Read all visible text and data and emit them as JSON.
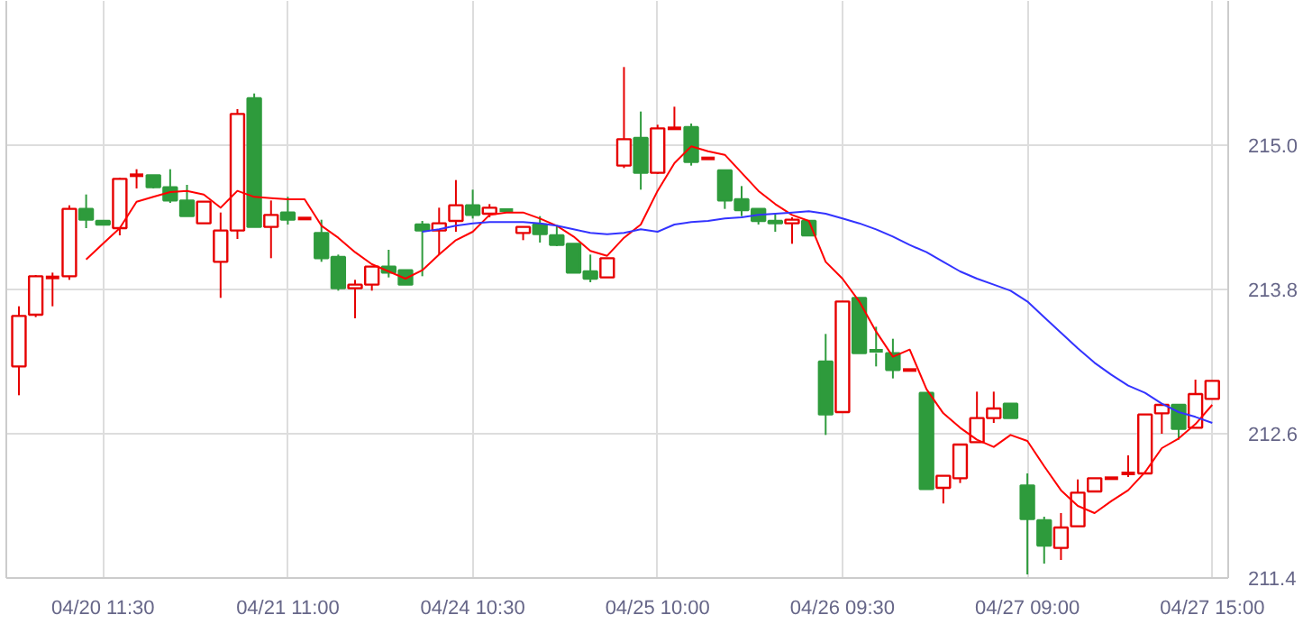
{
  "chart_data": {
    "type": "candlestick",
    "categories": [
      null,
      null,
      null,
      null,
      null,
      "04/20 11:30",
      null,
      null,
      null,
      null,
      null,
      null,
      null,
      null,
      null,
      null,
      "04/21 11:00",
      null,
      null,
      null,
      null,
      null,
      null,
      null,
      null,
      null,
      null,
      "04/24 10:30",
      null,
      null,
      null,
      null,
      null,
      null,
      null,
      null,
      null,
      null,
      "04/25 10:00",
      null,
      null,
      null,
      null,
      null,
      null,
      null,
      null,
      null,
      null,
      "04/26 09:30",
      null,
      null,
      null,
      null,
      null,
      null,
      null,
      null,
      null,
      null,
      "04/27 09:00",
      null,
      null,
      null,
      null,
      null,
      null,
      null,
      null,
      null,
      null,
      "04/27 15:00"
    ],
    "ohlc": [
      [
        213.16,
        213.66,
        212.92,
        213.58
      ],
      [
        213.59,
        213.92,
        213.57,
        213.91
      ],
      [
        213.89,
        213.94,
        213.66,
        213.9
      ],
      [
        213.91,
        214.5,
        213.88,
        214.47
      ],
      [
        214.47,
        214.59,
        214.31,
        214.38
      ],
      [
        214.37,
        214.37,
        214.34,
        214.34
      ],
      [
        214.31,
        214.73,
        214.25,
        214.72
      ],
      [
        214.74,
        214.8,
        214.64,
        214.75
      ],
      [
        214.75,
        214.75,
        214.64,
        214.65
      ],
      [
        214.65,
        214.8,
        214.52,
        214.54
      ],
      [
        214.54,
        214.67,
        214.41,
        214.41
      ],
      [
        214.35,
        214.53,
        214.35,
        214.53
      ],
      [
        214.03,
        214.44,
        213.73,
        214.29
      ],
      [
        214.29,
        215.3,
        214.22,
        215.26
      ],
      [
        215.39,
        215.43,
        214.32,
        214.32
      ],
      [
        214.32,
        214.54,
        214.06,
        214.42
      ],
      [
        214.44,
        214.57,
        214.34,
        214.38
      ],
      [
        214.37,
        214.39,
        214.37,
        214.39
      ],
      [
        214.27,
        214.38,
        214.03,
        214.06
      ],
      [
        214.07,
        214.09,
        213.79,
        213.81
      ],
      [
        213.81,
        213.88,
        213.56,
        213.84
      ],
      [
        213.84,
        213.99,
        213.79,
        213.99
      ],
      [
        213.99,
        214.13,
        213.9,
        213.94
      ],
      [
        213.96,
        213.96,
        213.84,
        213.84
      ],
      [
        214.34,
        214.37,
        213.91,
        214.29
      ],
      [
        214.29,
        214.48,
        214.09,
        214.35
      ],
      [
        214.37,
        214.71,
        214.28,
        214.5
      ],
      [
        214.5,
        214.63,
        214.39,
        214.42
      ],
      [
        214.43,
        214.51,
        214.4,
        214.48
      ],
      [
        214.46,
        214.46,
        214.45,
        214.45
      ],
      [
        214.27,
        214.32,
        214.21,
        214.32
      ],
      [
        214.34,
        214.41,
        214.19,
        214.26
      ],
      [
        214.25,
        214.33,
        214.16,
        214.17
      ],
      [
        214.18,
        214.18,
        213.94,
        213.94
      ],
      [
        213.95,
        214.09,
        213.86,
        213.89
      ],
      [
        213.9,
        214.06,
        213.9,
        214.06
      ],
      [
        214.83,
        215.65,
        214.81,
        215.05
      ],
      [
        215.06,
        215.28,
        214.63,
        214.77
      ],
      [
        214.77,
        215.17,
        214.76,
        215.14
      ],
      [
        215.13,
        215.32,
        215.13,
        215.14
      ],
      [
        215.15,
        215.18,
        214.83,
        214.86
      ],
      [
        214.88,
        214.89,
        214.88,
        214.89
      ],
      [
        214.79,
        214.79,
        214.47,
        214.54
      ],
      [
        214.55,
        214.66,
        214.41,
        214.46
      ],
      [
        214.47,
        214.47,
        214.34,
        214.37
      ],
      [
        214.37,
        214.43,
        214.28,
        214.35
      ],
      [
        214.35,
        214.4,
        214.18,
        214.38
      ],
      [
        214.37,
        214.37,
        214.25,
        214.25
      ],
      [
        213.2,
        213.43,
        212.59,
        212.76
      ],
      [
        212.78,
        213.7,
        212.78,
        213.7
      ],
      [
        213.73,
        213.73,
        213.27,
        213.27
      ],
      [
        213.29,
        213.49,
        213.16,
        213.27
      ],
      [
        213.27,
        213.39,
        213.06,
        213.13
      ],
      [
        213.12,
        213.13,
        213.12,
        213.13
      ],
      [
        212.94,
        212.94,
        212.14,
        212.14
      ],
      [
        212.15,
        212.25,
        212.02,
        212.25
      ],
      [
        212.23,
        212.51,
        212.19,
        212.51
      ],
      [
        212.53,
        212.95,
        212.53,
        212.73
      ],
      [
        212.73,
        212.95,
        212.69,
        212.81
      ],
      [
        212.85,
        212.85,
        212.73,
        212.73
      ],
      [
        212.17,
        212.27,
        211.43,
        211.89
      ],
      [
        211.88,
        211.91,
        211.52,
        211.67
      ],
      [
        211.65,
        211.94,
        211.55,
        211.82
      ],
      [
        211.83,
        212.22,
        211.83,
        212.11
      ],
      [
        212.12,
        212.23,
        212.12,
        212.23
      ],
      [
        212.22,
        212.23,
        212.22,
        212.23
      ],
      [
        212.26,
        212.42,
        212.24,
        212.27
      ],
      [
        212.27,
        212.76,
        212.27,
        212.76
      ],
      [
        212.77,
        212.84,
        212.6,
        212.84
      ],
      [
        212.84,
        212.84,
        212.55,
        212.64
      ],
      [
        212.65,
        213.05,
        212.65,
        212.93
      ],
      [
        212.89,
        213.04,
        212.89,
        213.04
      ]
    ],
    "colors": [
      "#e60000",
      "#e60000",
      "#e60000",
      "#e60000",
      "#2e9b3c",
      "#2e9b3c",
      "#e60000",
      "#e60000",
      "#2e9b3c",
      "#2e9b3c",
      "#2e9b3c",
      "#e60000",
      "#e60000",
      "#e60000",
      "#2e9b3c",
      "#e60000",
      "#2e9b3c",
      "#e60000",
      "#2e9b3c",
      "#2e9b3c",
      "#e60000",
      "#e60000",
      "#2e9b3c",
      "#2e9b3c",
      "#2e9b3c",
      "#e60000",
      "#e60000",
      "#2e9b3c",
      "#e60000",
      "#2e9b3c",
      "#e60000",
      "#2e9b3c",
      "#2e9b3c",
      "#2e9b3c",
      "#2e9b3c",
      "#e60000",
      "#e60000",
      "#2e9b3c",
      "#e60000",
      "#e60000",
      "#2e9b3c",
      "#e60000",
      "#2e9b3c",
      "#2e9b3c",
      "#2e9b3c",
      "#2e9b3c",
      "#e60000",
      "#2e9b3c",
      "#2e9b3c",
      "#e60000",
      "#2e9b3c",
      "#2e9b3c",
      "#2e9b3c",
      "#e60000",
      "#2e9b3c",
      "#e60000",
      "#e60000",
      "#e60000",
      "#e60000",
      "#2e9b3c",
      "#2e9b3c",
      "#2e9b3c",
      "#e60000",
      "#e60000",
      "#e60000",
      "#e60000",
      "#e60000",
      "#e60000",
      "#e60000",
      "#2e9b3c",
      "#e60000",
      "#e60000"
    ],
    "series": [
      {
        "type": "line",
        "color": "#ff0000",
        "values": [
          null,
          null,
          null,
          null,
          214.05,
          214.18,
          214.31,
          214.53,
          214.57,
          214.61,
          214.62,
          214.59,
          214.48,
          214.62,
          214.57,
          214.56,
          214.55,
          214.55,
          214.33,
          214.23,
          214.11,
          214.01,
          213.95,
          213.89,
          213.96,
          214.09,
          214.21,
          214.28,
          214.42,
          214.44,
          214.44,
          214.39,
          214.33,
          214.24,
          214.12,
          214.08,
          214.23,
          214.34,
          214.62,
          214.85,
          214.99,
          214.95,
          214.92,
          214.77,
          214.62,
          214.51,
          214.42,
          214.37,
          214.03,
          213.89,
          213.7,
          213.45,
          213.24,
          213.3,
          212.97,
          212.77,
          212.65,
          212.55,
          212.49,
          212.59,
          212.54,
          212.33,
          212.13,
          212.0,
          211.94,
          212.04,
          212.13,
          212.28,
          212.48,
          212.56,
          212.68,
          212.84
        ]
      },
      {
        "type": "line",
        "color": "#3333ff",
        "values": [
          null,
          null,
          null,
          null,
          null,
          null,
          null,
          null,
          null,
          null,
          null,
          null,
          null,
          null,
          null,
          null,
          null,
          null,
          null,
          null,
          null,
          null,
          null,
          null,
          214.28,
          214.3,
          214.33,
          214.35,
          214.36,
          214.36,
          214.36,
          214.35,
          214.33,
          214.3,
          214.27,
          214.26,
          214.27,
          214.3,
          214.28,
          214.34,
          214.36,
          214.37,
          214.39,
          214.4,
          214.42,
          214.43,
          214.44,
          214.45,
          214.43,
          214.39,
          214.35,
          214.3,
          214.24,
          214.17,
          214.11,
          214.03,
          213.95,
          213.89,
          213.84,
          213.79,
          213.7,
          213.57,
          213.44,
          213.31,
          213.19,
          213.09,
          213.0,
          212.94,
          212.85,
          212.78,
          212.74,
          212.69
        ]
      }
    ],
    "ylim": [
      211.4,
      216.2
    ],
    "yticks": [
      211.4,
      212.6,
      213.8,
      {
        "value": 215.0,
        "label": "215.0"
      }
    ],
    "grid": true
  }
}
